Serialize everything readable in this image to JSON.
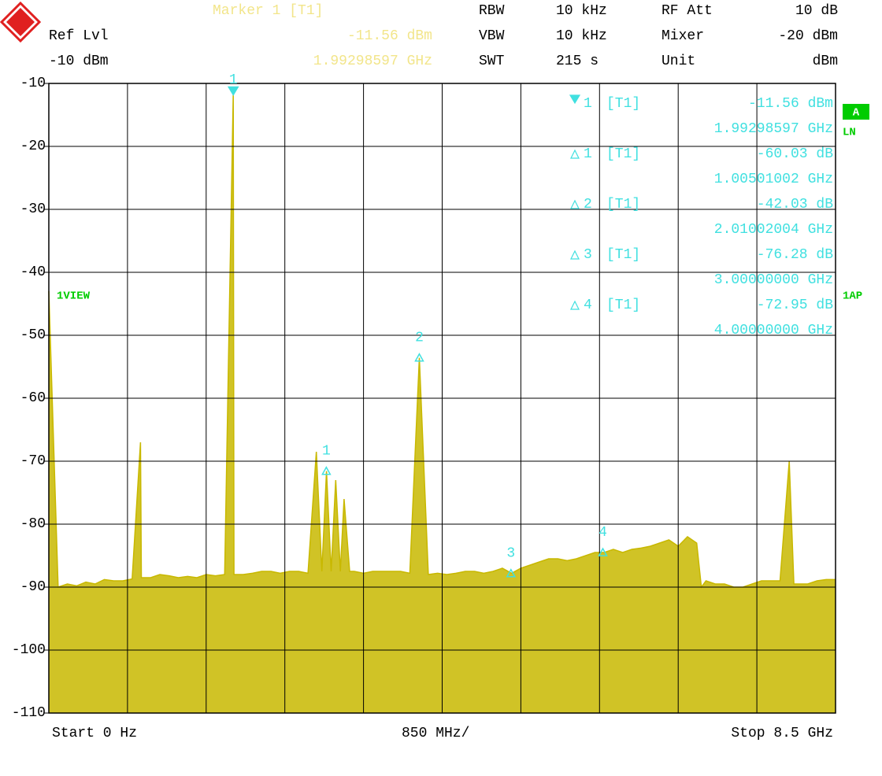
{
  "header": {
    "marker_title": "Marker 1 [T1]",
    "marker_level": "-11.56 dBm",
    "marker_freq": "1.99298597 GHz",
    "ref_lvl_label": "Ref Lvl",
    "ref_lvl_value": "-10 dBm",
    "rbw_label": "RBW",
    "rbw_value": "10 kHz",
    "vbw_label": "VBW",
    "vbw_value": "10 kHz",
    "swt_label": "SWT",
    "swt_value": "215 s",
    "rf_att_label": "RF Att",
    "rf_att_value": "10 dB",
    "mixer_label": "Mixer",
    "mixer_value": "-20 dBm",
    "unit_label": "Unit",
    "unit_value": "dBm"
  },
  "side_labels": {
    "trace_a": "A",
    "ln": "LN",
    "ap": "1AP",
    "view": "1VIEW"
  },
  "marker_table": [
    {
      "num": "1",
      "trace": "[T1]",
      "level": "-11.56 dBm",
      "freq": "1.99298597 GHz"
    },
    {
      "num": "1",
      "trace": "[T1]",
      "level": "-60.03 dB",
      "freq": "1.00501002 GHz"
    },
    {
      "num": "2",
      "trace": "[T1]",
      "level": "-42.03 dB",
      "freq": "2.01002004 GHz"
    },
    {
      "num": "3",
      "trace": "[T1]",
      "level": "-76.28 dB",
      "freq": "3.00000000 GHz"
    },
    {
      "num": "4",
      "trace": "[T1]",
      "level": "-72.95 dB",
      "freq": "4.00000000 GHz"
    }
  ],
  "footer": {
    "start": "Start 0 Hz",
    "span_div": "850 MHz/",
    "stop": "Stop 8.5 GHz"
  },
  "chart_data": {
    "type": "area",
    "color": "#c8b800",
    "grid": true,
    "xlim": [
      0,
      8.5
    ],
    "ylim": [
      -110,
      -10
    ],
    "xticks": [
      0,
      0.85,
      1.7,
      2.55,
      3.4,
      4.25,
      5.1,
      5.95,
      6.8,
      7.65,
      8.5
    ],
    "yticks": [
      -10,
      -20,
      -30,
      -40,
      -50,
      -60,
      -70,
      -80,
      -90,
      -100,
      -110
    ],
    "x": [
      0,
      0.1,
      0.2,
      0.3,
      0.4,
      0.5,
      0.6,
      0.7,
      0.8,
      0.9,
      0.99,
      1.0,
      1.1,
      1.2,
      1.3,
      1.4,
      1.5,
      1.6,
      1.7,
      1.8,
      1.9,
      1.993,
      2.0,
      2.1,
      2.2,
      2.3,
      2.4,
      2.5,
      2.6,
      2.7,
      2.8,
      2.89,
      2.95,
      3.0,
      3.05,
      3.1,
      3.15,
      3.19,
      3.25,
      3.3,
      3.4,
      3.5,
      3.6,
      3.7,
      3.8,
      3.9,
      4.003,
      4.1,
      4.2,
      4.3,
      4.4,
      4.5,
      4.6,
      4.7,
      4.8,
      4.9,
      5.0,
      5.1,
      5.2,
      5.3,
      5.4,
      5.5,
      5.6,
      5.7,
      5.8,
      5.9,
      6.0,
      6.1,
      6.2,
      6.3,
      6.4,
      6.5,
      6.6,
      6.7,
      6.8,
      6.9,
      7.0,
      7.05,
      7.1,
      7.2,
      7.3,
      7.4,
      7.5,
      7.6,
      7.7,
      7.8,
      7.9,
      8.0,
      8.05,
      8.1,
      8.2,
      8.3,
      8.4,
      8.5
    ],
    "values": [
      -43,
      -90,
      -89.5,
      -89.8,
      -89.2,
      -89.5,
      -88.8,
      -89,
      -89,
      -88.7,
      -67,
      -88.5,
      -88.5,
      -88,
      -88.2,
      -88.5,
      -88.3,
      -88.5,
      -88,
      -88.2,
      -88,
      -11.56,
      -88,
      -88,
      -87.8,
      -87.5,
      -87.5,
      -87.8,
      -87.5,
      -87.5,
      -87.8,
      -68.5,
      -87.5,
      -71.59,
      -87.5,
      -73,
      -87.5,
      -76,
      -87.5,
      -87.5,
      -87.8,
      -87.5,
      -87.5,
      -87.5,
      -87.5,
      -87.8,
      -53.59,
      -88,
      -87.8,
      -88,
      -87.8,
      -87.5,
      -87.5,
      -87.8,
      -87.5,
      -87,
      -87.8,
      -87,
      -86.5,
      -86,
      -85.5,
      -85.5,
      -85.8,
      -85.5,
      -85,
      -84.5,
      -84.5,
      -84,
      -84.5,
      -84,
      -83.8,
      -83.5,
      -83,
      -82.5,
      -83.5,
      -82,
      -83,
      -90,
      -89,
      -89.5,
      -89.5,
      -90,
      -90,
      -89.5,
      -89,
      -89,
      -89,
      -70,
      -89.5,
      -89.5,
      -89.5,
      -89,
      -88.8,
      -88.8
    ],
    "markers": [
      {
        "label": "1",
        "x": 1.993,
        "y": -11.56
      },
      {
        "label": "1",
        "x": 2.998,
        "y": -71.59
      },
      {
        "label": "2",
        "x": 4.003,
        "y": -53.59
      },
      {
        "label": "3",
        "x": 4.993,
        "y": -87.84
      },
      {
        "label": "4",
        "x": 5.986,
        "y": -84.51
      }
    ]
  }
}
